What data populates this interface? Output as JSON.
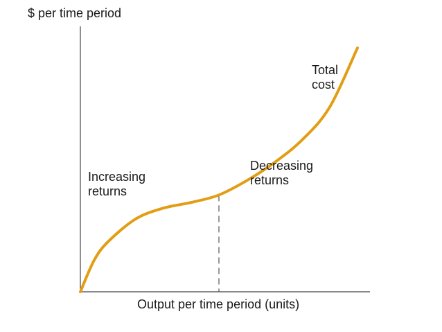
{
  "chart_data": {
    "type": "line",
    "title": "",
    "ylabel": "$ per time period",
    "xlabel": "Output per time period (units)",
    "grid": false,
    "legend": "none",
    "series": [
      {
        "name": "Total cost",
        "x": [
          0,
          5,
          10,
          20,
          30,
          40,
          50,
          60,
          70,
          80,
          90,
          100
        ],
        "y": [
          0,
          17.9,
          28.3,
          41.2,
          47.3,
          50.5,
          54.7,
          62.8,
          73.0,
          85.8,
          104.4,
          137.8
        ],
        "color": "#e39d14"
      }
    ],
    "inflection_x": 50,
    "annotations": {
      "total_cost": [
        "Total",
        "cost"
      ],
      "increasing": [
        "Increasing",
        "returns"
      ],
      "decreasing": [
        "Decreasing",
        "returns"
      ]
    },
    "xlim": [
      0,
      100
    ],
    "ylim": [
      0,
      150
    ]
  }
}
